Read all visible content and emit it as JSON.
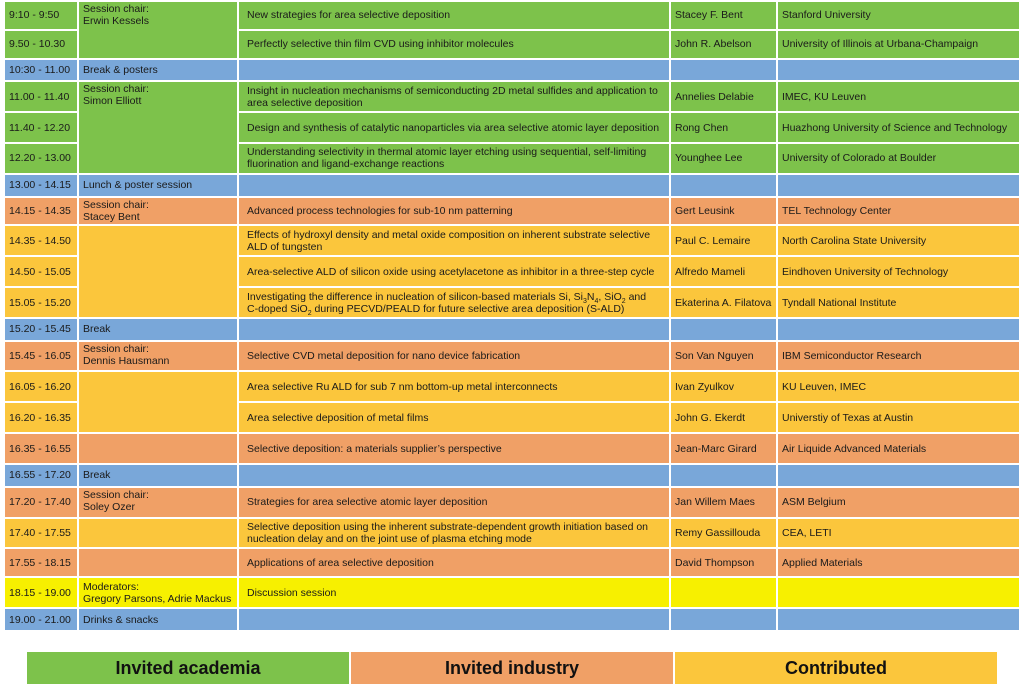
{
  "schedule": {
    "rows": [
      {
        "time": "9:10 - 9:50",
        "chair_label": "Session chair:",
        "chair_name": "Erwin Kessels",
        "title": "New strategies for area selective deposition",
        "speaker": "Stacey F. Bent",
        "affiliation": "Stanford University"
      },
      {
        "time": "9.50 - 10.30",
        "title": "Perfectly selective thin film CVD using inhibitor molecules",
        "speaker": "John R. Abelson",
        "affiliation": "University of Illinois at Urbana-Champaign"
      },
      {
        "time": "10:30 - 11.00",
        "event": "Break & posters"
      },
      {
        "time": "11.00 - 11.40",
        "chair_label": "Session chair:",
        "chair_name": "Simon Elliott",
        "title": "Insight in nucleation mechanisms of semiconducting 2D metal sulfides and application to area selective deposition",
        "speaker": "Annelies Delabie",
        "affiliation": "IMEC, KU Leuven"
      },
      {
        "time": "11.40 - 12.20",
        "title": "Design and synthesis of catalytic nanoparticles via area selective atomic layer deposition",
        "speaker": "Rong Chen",
        "affiliation": "Huazhong University of Science and Technology"
      },
      {
        "time": "12.20 - 13.00",
        "title": "Understanding selectivity in thermal atomic layer etching using sequential, self-limiting fluorination and ligand-exchange reactions",
        "speaker": "Younghee Lee",
        "affiliation": "University of Colorado at Boulder"
      },
      {
        "time": "13.00 - 14.15",
        "event": "Lunch & poster session"
      },
      {
        "time": "14.15 - 14.35",
        "chair_label": "Session chair:",
        "chair_name": "Stacey Bent",
        "title": "Advanced process technologies for sub-10 nm patterning",
        "speaker": "Gert Leusink",
        "affiliation": "TEL Technology Center"
      },
      {
        "time": "14.35 - 14.50",
        "title": "Effects of hydroxyl density and metal oxide composition on inherent substrate selective ALD of tungsten",
        "speaker": "Paul C. Lemaire",
        "affiliation": "North Carolina State University"
      },
      {
        "time": "14.50 - 15.05",
        "title": "Area-selective ALD of silicon oxide using acetylacetone as inhibitor in a three-step cycle",
        "speaker": "Alfredo Mameli",
        "affiliation": "Eindhoven University of Technology"
      },
      {
        "time": "15.05 - 15.20",
        "title_line1_prefix": "Investigating the difference in nucleation of silicon-based materials Si, Si",
        "title_sub_a": "3",
        "title_mid_a": "N",
        "title_sub_b": "4",
        "title_mid_b": ", SiO",
        "title_sub_c": "2",
        "title_line1_suffix": " and",
        "title_line2_prefix": "C-doped SiO",
        "title_sub_d": "2",
        "title_line2_suffix": " during PECVD/PEALD for future selective area deposition (S-ALD)",
        "speaker": "Ekaterina A. Filatova",
        "affiliation": "Tyndall National Institute"
      },
      {
        "time": "15.20 - 15.45",
        "event": "Break"
      },
      {
        "time": "15.45 - 16.05",
        "chair_label": "Session chair:",
        "chair_name": "Dennis Hausmann",
        "title": "Selective CVD metal deposition for nano device fabrication",
        "speaker": "Son Van Nguyen",
        "affiliation": "IBM Semiconductor Research"
      },
      {
        "time": "16.05 - 16.20",
        "title": "Area selective Ru ALD for sub 7 nm bottom-up metal interconnects",
        "speaker": "Ivan Zyulkov",
        "affiliation": "KU Leuven, IMEC"
      },
      {
        "time": "16.20 - 16.35",
        "title": "Area selective deposition of metal films",
        "speaker": "John G. Ekerdt",
        "affiliation": "Universtiy of Texas at Austin"
      },
      {
        "time": "16.35 - 16.55",
        "title": "Selective deposition: a materials supplier’s perspective",
        "speaker": "Jean-Marc Girard",
        "affiliation": "Air Liquide Advanced Materials"
      },
      {
        "time": "16.55 - 17.20",
        "event": "Break"
      },
      {
        "time": "17.20 - 17.40",
        "chair_label": "Session chair:",
        "chair_name": "Soley Ozer",
        "title": "Strategies for area selective atomic layer deposition",
        "speaker": "Jan Willem Maes",
        "affiliation": "ASM Belgium"
      },
      {
        "time": "17.40 - 17.55",
        "title": "Selective deposition using the inherent substrate-dependent growth initiation based on nucleation delay and on the joint use of plasma etching mode",
        "speaker": "Remy Gassillouda",
        "affiliation": "CEA, LETI"
      },
      {
        "time": "17.55 - 18.15",
        "title": "Applications of area selective deposition",
        "speaker": "David Thompson",
        "affiliation": "Applied Materials"
      },
      {
        "time": "18.15 - 19.00",
        "chair_label": "Moderators:",
        "chair_name": "Gregory Parsons, Adrie Mackus",
        "title": "Discussion session"
      },
      {
        "time": "19.00 - 21.00",
        "event": "Drinks & snacks"
      }
    ]
  },
  "legend": {
    "academia": "Invited academia",
    "industry": "Invited industry",
    "contributed": "Contributed"
  },
  "colors": {
    "invited_academia": "#7dc24b",
    "invited_industry": "#f0a066",
    "contributed": "#fbc63c",
    "break": "#79a7d9",
    "discussion": "#f7f000"
  }
}
